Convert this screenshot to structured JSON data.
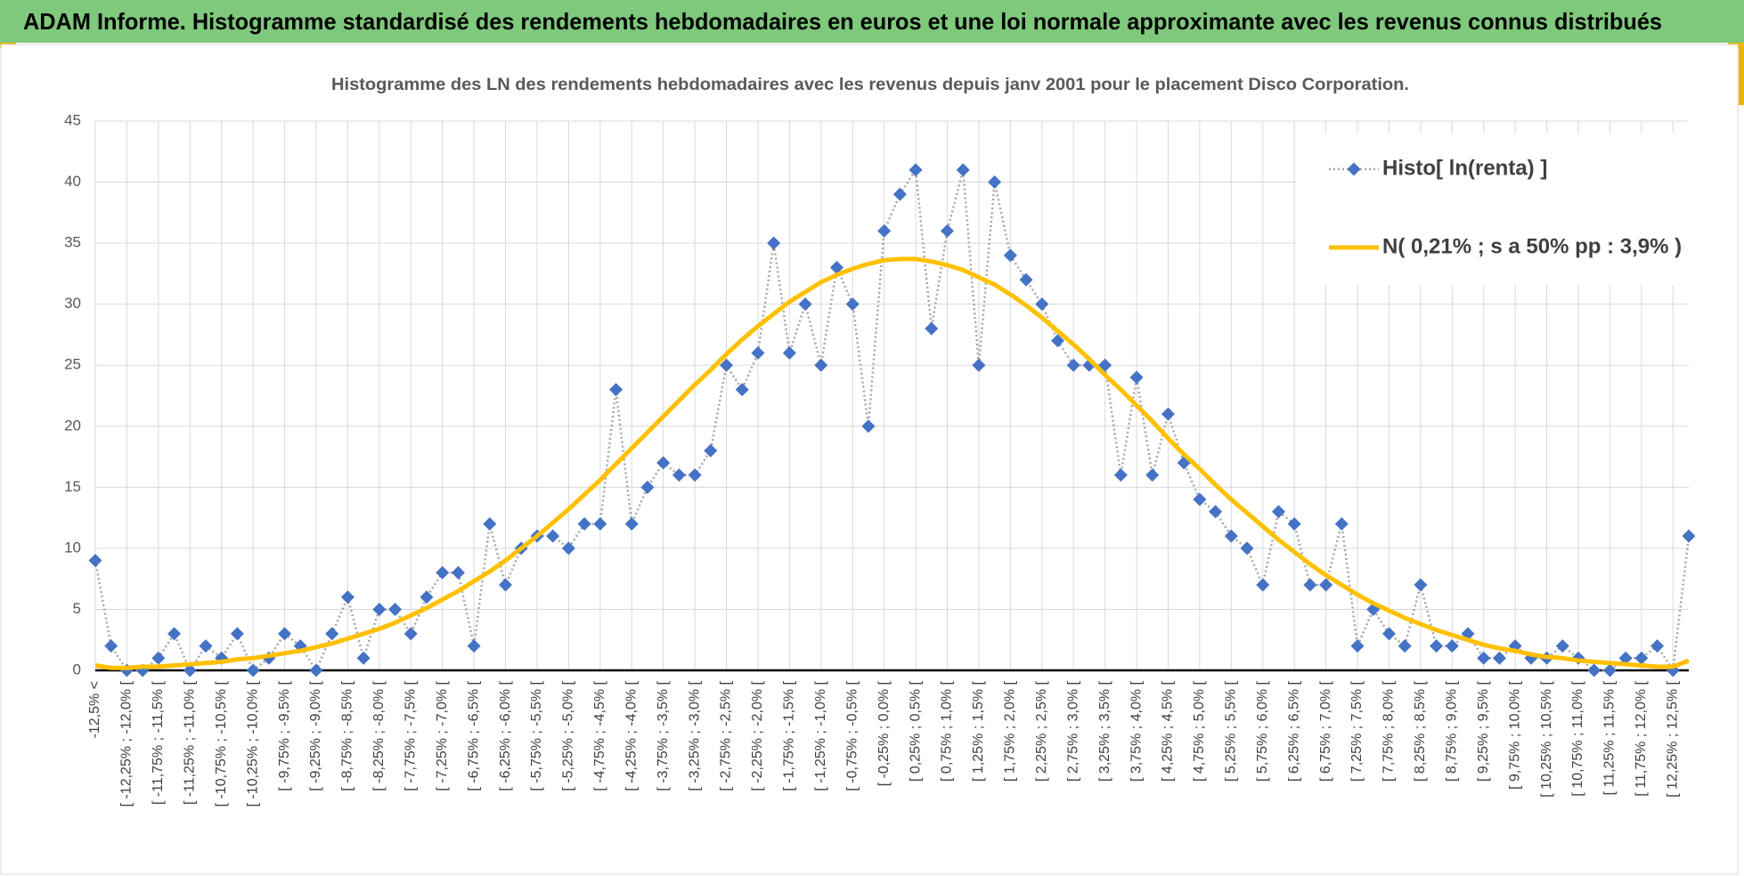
{
  "header": {
    "title": "ADAM Informe. Histogramme standardisé des rendements hebdomadaires en euros et une loi normale approximante avec les revenus connus distribués"
  },
  "chart_data": {
    "type": "line",
    "title": "Histogramme des LN des rendements hebdomadaires avec les revenus depuis janv 2001 pour le placement Disco Corporation.",
    "categories": [
      "-12,5% <",
      null,
      "[ -12,25% ; -12,0% [",
      null,
      "[ -11,75% ; -11,5% [",
      null,
      "[ -11,25% ; -11,0% [",
      null,
      "[ -10,75% ; -10,5% [",
      null,
      "[ -10,25% ; -10,0% [",
      null,
      "[ -9,75% ; -9,5% [",
      null,
      "[ -9,25% ; -9,0% [",
      null,
      "[ -8,75% ; -8,5% [",
      null,
      "[ -8,25% ; -8,0% [",
      null,
      "[ -7,75% ; -7,5% [",
      null,
      "[ -7,25% ; -7,0% [",
      null,
      "[ -6,75% ; -6,5% [",
      null,
      "[ -6,25% ; -6,0% [",
      null,
      "[ -5,75% ; -5,5% [",
      null,
      "[ -5,25% ; -5,0% [",
      null,
      "[ -4,75% ; -4,5% [",
      null,
      "[ -4,25% ; -4,0% [",
      null,
      "[ -3,75% ; -3,5% [",
      null,
      "[ -3,25% ; -3,0% [",
      null,
      "[ -2,75% ; -2,5% [",
      null,
      "[ -2,25% ; -2,0% [",
      null,
      "[ -1,75% ; -1,5% [",
      null,
      "[ -1,25% ; -1,0% [",
      null,
      "[ -0,75% ; -0,5% [",
      null,
      "[ -0,25% ; 0,0% [",
      null,
      "[ 0,25% ; 0,5% [",
      null,
      "[ 0,75% ; 1,0% [",
      null,
      "[ 1,25% ; 1,5% [",
      null,
      "[ 1,75% ; 2,0% [",
      null,
      "[ 2,25% ; 2,5% [",
      null,
      "[ 2,75% ; 3,0% [",
      null,
      "[ 3,25% ; 3,5% [",
      null,
      "[ 3,75% ; 4,0% [",
      null,
      "[ 4,25% ; 4,5% [",
      null,
      "[ 4,75% ; 5,0% [",
      null,
      "[ 5,25% ; 5,5% [",
      null,
      "[ 5,75% ; 6,0% [",
      null,
      "[ 6,25% ; 6,5% [",
      null,
      "[ 6,75% ; 7,0% [",
      null,
      "[ 7,25% ; 7,5% [",
      null,
      "[ 7,75% ; 8,0% [",
      null,
      "[ 8,25% ; 8,5% [",
      null,
      "[ 8,75% ; 9,0% [",
      null,
      "[ 9,25% ; 9,5% [",
      null,
      "[ 9,75% ; 10,0% [",
      null,
      "[ 10,25% ; 10,5% [",
      null,
      "[ 10,75% ; 11,0% [",
      null,
      "[ 11,25% ; 11,5% [",
      null,
      "[ 11,75% ; 12,0% [",
      null,
      "[ 12,25% ; 12,5% [",
      null
    ],
    "series": [
      {
        "name": "Histo[ ln(renta) ]",
        "color": "#4472c4",
        "line_color": "#a6a6a6",
        "marker": "diamond",
        "line_style": "dotted",
        "values": [
          9,
          2,
          0,
          0,
          1,
          3,
          0,
          2,
          1,
          3,
          0,
          1,
          3,
          2,
          0,
          3,
          6,
          1,
          5,
          5,
          3,
          6,
          8,
          8,
          2,
          12,
          7,
          10,
          11,
          11,
          10,
          12,
          12,
          23,
          12,
          15,
          17,
          16,
          16,
          18,
          25,
          23,
          26,
          35,
          26,
          30,
          25,
          33,
          30,
          20,
          36,
          39,
          41,
          28,
          36,
          41,
          25,
          40,
          34,
          32,
          30,
          27,
          25,
          25,
          25,
          16,
          24,
          16,
          21,
          17,
          14,
          13,
          11,
          10,
          7,
          13,
          12,
          7,
          7,
          12,
          2,
          5,
          3,
          2,
          7,
          2,
          2,
          3,
          1,
          1,
          2,
          1,
          1,
          2,
          1,
          0,
          0,
          1,
          1,
          2,
          0,
          11
        ]
      },
      {
        "name": "N( 0,21% ; s a 50% pp : 3,9% )",
        "color": "#ffc000",
        "marker": "none",
        "line_style": "solid",
        "values": [
          0.4,
          0.2,
          0.2,
          0.3,
          0.3,
          0.4,
          0.5,
          0.6,
          0.7,
          0.9,
          1.0,
          1.2,
          1.4,
          1.6,
          1.9,
          2.2,
          2.6,
          3.0,
          3.4,
          3.9,
          4.5,
          5.1,
          5.8,
          6.5,
          7.3,
          8.1,
          9.0,
          10.0,
          11.0,
          12.1,
          13.2,
          14.4,
          15.6,
          16.9,
          18.2,
          19.5,
          20.8,
          22.1,
          23.4,
          24.6,
          25.9,
          27.1,
          28.2,
          29.2,
          30.2,
          31.0,
          31.8,
          32.4,
          32.9,
          33.3,
          33.6,
          33.7,
          33.7,
          33.5,
          33.2,
          32.8,
          32.2,
          31.6,
          30.8,
          29.9,
          28.9,
          27.8,
          26.7,
          25.5,
          24.2,
          23.0,
          21.7,
          20.4,
          19.0,
          17.7,
          16.5,
          15.2,
          14.0,
          12.9,
          11.8,
          10.7,
          9.7,
          8.7,
          7.8,
          7.0,
          6.2,
          5.5,
          4.9,
          4.3,
          3.8,
          3.3,
          2.9,
          2.5,
          2.1,
          1.8,
          1.6,
          1.3,
          1.1,
          1.0,
          0.8,
          0.7,
          0.6,
          0.5,
          0.4,
          0.3,
          0.3,
          0.8
        ]
      }
    ],
    "ylim": [
      0,
      45
    ],
    "yticks": [
      0,
      5,
      10,
      15,
      20,
      25,
      30,
      35,
      40,
      45
    ],
    "grid": true,
    "legend": "upper right"
  }
}
